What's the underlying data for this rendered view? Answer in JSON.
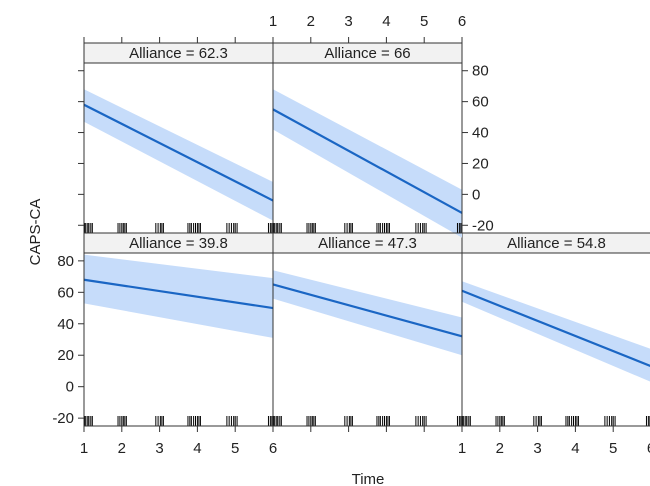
{
  "chart_data": {
    "type": "line",
    "xlabel": "Time",
    "ylabel": "CAPS-CA",
    "xlim": [
      1,
      6
    ],
    "ylim": [
      -25,
      85
    ],
    "x_ticks": [
      1,
      2,
      3,
      4,
      5,
      6
    ],
    "y_ticks": [
      -20,
      0,
      20,
      40,
      60,
      80
    ],
    "colors": {
      "line": "#1a66c4",
      "band": "#c6dcfa",
      "strip": "#f2f2f2"
    },
    "panels": [
      {
        "label": "Alliance = 39.8",
        "x": [
          1,
          6
        ],
        "fit": [
          68,
          50
        ],
        "lower": [
          53,
          31
        ],
        "upper": [
          84,
          69
        ]
      },
      {
        "label": "Alliance = 47.3",
        "x": [
          1,
          6
        ],
        "fit": [
          65,
          32
        ],
        "lower": [
          56,
          20
        ],
        "upper": [
          74,
          44
        ]
      },
      {
        "label": "Alliance = 54.8",
        "x": [
          1,
          6
        ],
        "fit": [
          61,
          13
        ],
        "lower": [
          54,
          3
        ],
        "upper": [
          67,
          24
        ]
      },
      {
        "label": "Alliance = 62.3",
        "x": [
          1,
          6
        ],
        "fit": [
          58,
          -4
        ],
        "lower": [
          47,
          -17
        ],
        "upper": [
          68,
          8
        ]
      },
      {
        "label": "Alliance = 66",
        "x": [
          1,
          6
        ],
        "fit": [
          55,
          -12
        ],
        "lower": [
          42,
          -28
        ],
        "upper": [
          68,
          3
        ]
      }
    ],
    "rug_x": [
      1.0,
      1.02,
      1.05,
      1.1,
      1.13,
      1.18,
      1.22,
      1.9,
      1.95,
      2.0,
      2.04,
      2.08,
      2.12,
      2.9,
      2.96,
      3.02,
      3.06,
      3.1,
      3.75,
      3.8,
      3.84,
      3.9,
      3.95,
      4.0,
      4.04,
      4.08,
      4.78,
      4.84,
      4.9,
      4.96,
      5.0,
      5.05,
      5.88,
      5.93,
      5.97,
      6.0
    ]
  }
}
